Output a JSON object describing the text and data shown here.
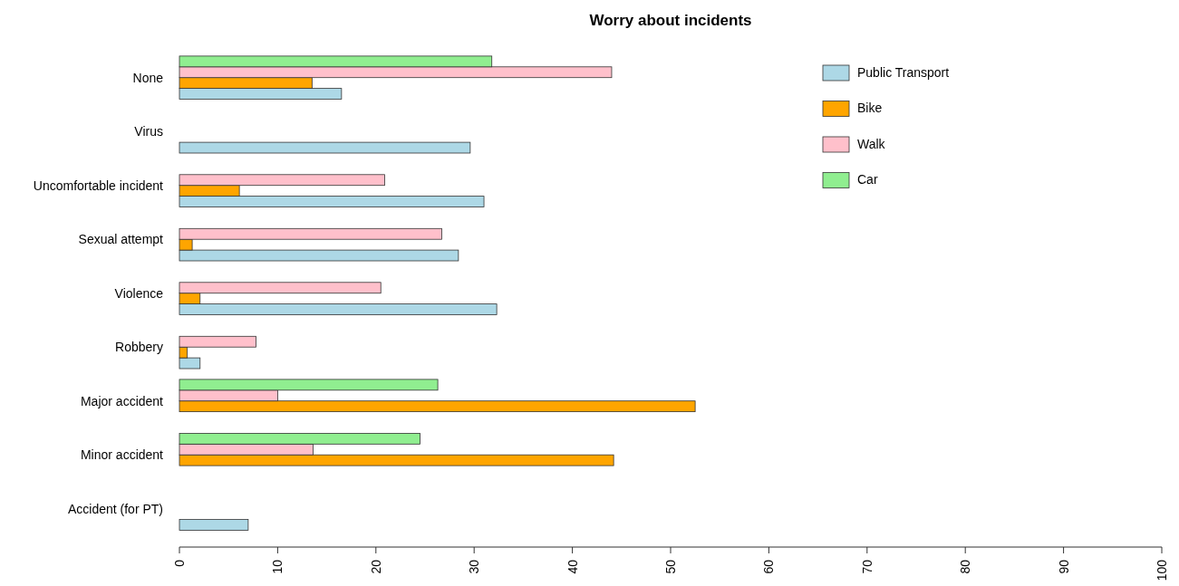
{
  "chart_data": {
    "type": "bar",
    "orientation": "horizontal",
    "title": "Worry about incidents",
    "categories": [
      "None",
      "Virus",
      "Uncomfortable incident",
      "Sexual attempt",
      "Violence",
      "Robbery",
      "Major accident",
      "Minor accident",
      "Accident (for PT)"
    ],
    "series": [
      {
        "name": "Public Transport",
        "color": "#add8e6",
        "values": [
          16.5,
          29.6,
          31.0,
          28.4,
          32.3,
          2.1,
          0,
          0,
          7.0
        ]
      },
      {
        "name": "Bike",
        "color": "#ffa500",
        "values": [
          13.5,
          0,
          6.1,
          1.3,
          2.1,
          0.8,
          52.5,
          44.2,
          0
        ]
      },
      {
        "name": "Walk",
        "color": "#ffc0cb",
        "values": [
          44.0,
          0,
          20.9,
          26.7,
          20.5,
          7.8,
          10.0,
          13.6,
          0
        ]
      },
      {
        "name": "Car",
        "color": "#90ee90",
        "values": [
          31.8,
          0,
          0,
          0,
          0,
          0,
          26.3,
          24.5,
          0
        ]
      }
    ],
    "xlim": [
      0,
      100
    ],
    "xticks": [
      0,
      10,
      20,
      30,
      40,
      50,
      60,
      70,
      80,
      90,
      100
    ],
    "legend": "top right",
    "grid": false
  }
}
